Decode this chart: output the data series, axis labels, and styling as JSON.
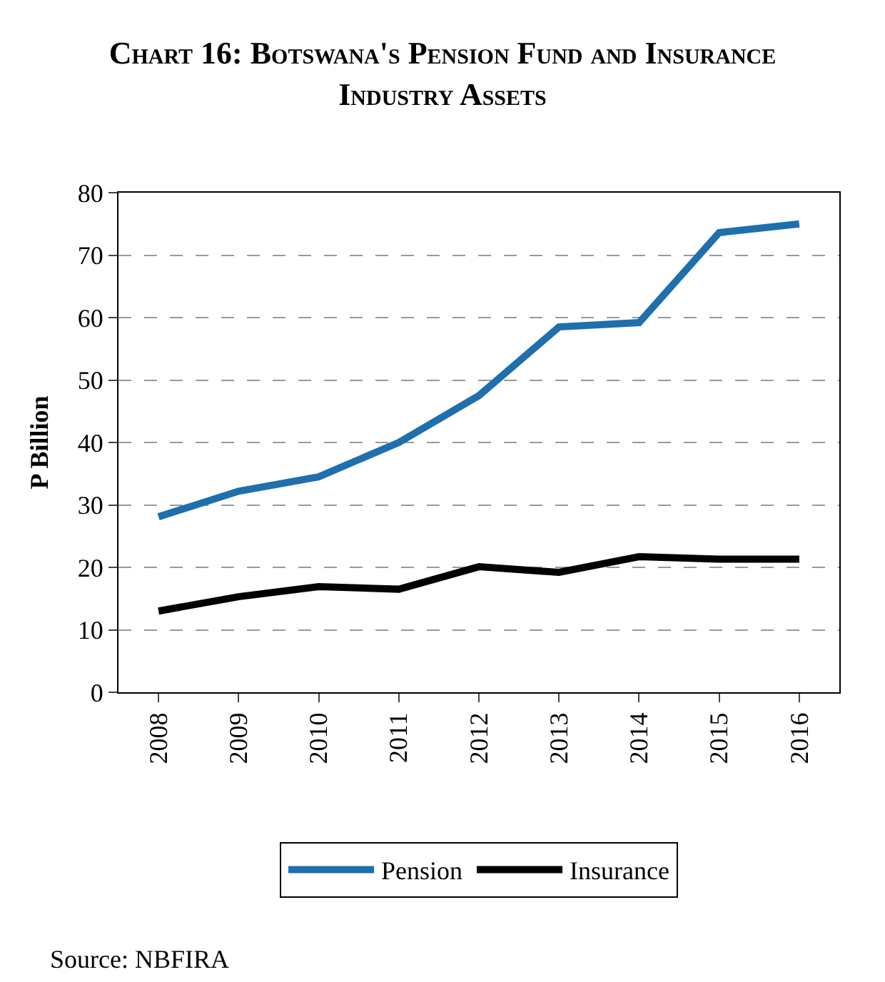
{
  "chart_data": {
    "type": "line",
    "title": "Chart 16: Botswana's Pension Fund and Insurance Industry Assets",
    "ylabel": "P Billion",
    "categories": [
      "2008",
      "2009",
      "2010",
      "2011",
      "2012",
      "2013",
      "2014",
      "2015",
      "2016"
    ],
    "series": [
      {
        "name": "Pension",
        "color": "#1f6fad",
        "values": [
          28.1,
          32.2,
          34.5,
          40.0,
          47.5,
          58.5,
          59.2,
          73.6,
          75.0
        ]
      },
      {
        "name": "Insurance",
        "color": "#000000",
        "values": [
          13.0,
          15.3,
          16.9,
          16.5,
          20.1,
          19.2,
          21.7,
          21.3,
          21.3
        ]
      }
    ],
    "ylim": [
      0,
      80
    ],
    "yticks": [
      0,
      10,
      20,
      30,
      40,
      50,
      60,
      70,
      80
    ],
    "grid": "y",
    "legend": "bottom",
    "marker": "none",
    "line_style": "solid",
    "annotations": [
      "Source: NBFIRA"
    ]
  }
}
